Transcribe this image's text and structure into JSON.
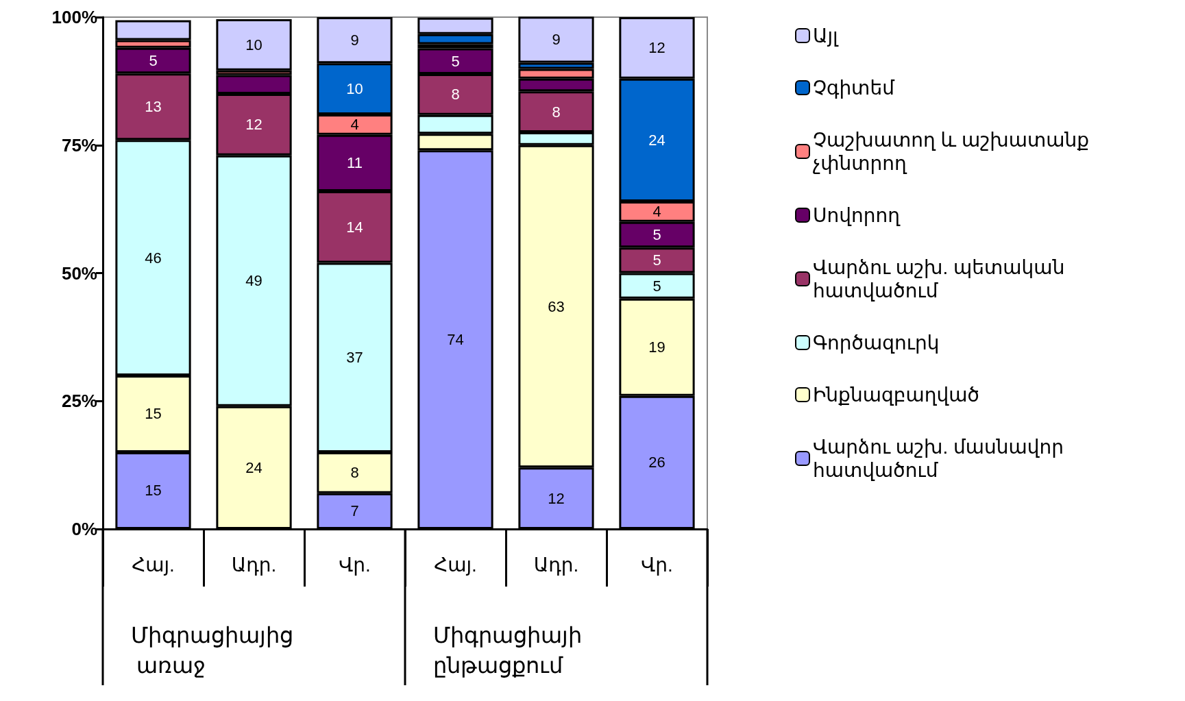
{
  "chart_data": {
    "type": "bar",
    "stacked": true,
    "categories": [
      "Հայ.",
      "Ադր.",
      "Վր.",
      "Հայ.",
      "Ադր.",
      "Վր."
    ],
    "annotations": [
      "Միգրացիայից առաջ",
      "Միգրացիայի ընթացքում"
    ],
    "ylim": [
      0,
      100
    ],
    "yticks": [
      {
        "value": 0,
        "label": "0%"
      },
      {
        "value": 25,
        "label": "25%"
      },
      {
        "value": 50,
        "label": "50%"
      },
      {
        "value": 75,
        "label": "75%"
      },
      {
        "value": 100,
        "label": "100%"
      }
    ],
    "legend": "right",
    "grid": false,
    "series": [
      {
        "name": "Վարձու աշխ. մասնավոր հատվածում",
        "color": "#9999ff",
        "values": [
          15,
          null,
          7,
          74,
          12,
          26
        ],
        "value_labels": [
          "15",
          null,
          "7",
          "74",
          "12",
          "26"
        ]
      },
      {
        "name": "Ինքնազբաղված",
        "color": "#ffffcc",
        "values": [
          15,
          24,
          8,
          3.2,
          63,
          19
        ],
        "value_labels": [
          "15",
          "24",
          "8",
          null,
          "63",
          "19"
        ]
      },
      {
        "name": "Գործազուրկ",
        "color": "#ccffff",
        "values": [
          46,
          49,
          37,
          3.7,
          2.5,
          5
        ],
        "value_labels": [
          "46",
          "49",
          "37",
          null,
          null,
          "5"
        ]
      },
      {
        "name": "Վարձու աշխ. պետական հատվածում",
        "color": "#993366",
        "values": [
          13,
          12,
          14,
          8,
          8,
          5
        ],
        "value_labels": [
          "13",
          "12",
          "14",
          "8",
          "8",
          "5"
        ]
      },
      {
        "name": "Սովորող",
        "color": "#660066",
        "values": [
          5,
          3.7,
          11,
          5,
          2.5,
          5
        ],
        "value_labels": [
          "5",
          null,
          "11",
          "5",
          null,
          "5"
        ]
      },
      {
        "name": "Չաշխատող և աշխատանք չփնտրող",
        "color": "#ff8080",
        "values": [
          1.5,
          0.9,
          4,
          0.8,
          1.9,
          4
        ],
        "value_labels": [
          null,
          null,
          "4",
          null,
          null,
          "4"
        ]
      },
      {
        "name": "Չգիտեմ",
        "color": "#0066cc",
        "values": [
          null,
          null,
          10,
          2,
          1.2,
          24
        ],
        "value_labels": [
          null,
          null,
          "10",
          null,
          null,
          "24"
        ]
      },
      {
        "name": "Այլ",
        "color": "#ccccff",
        "values": [
          3.9,
          10,
          9,
          3.2,
          9,
          12
        ],
        "value_labels": [
          null,
          "10",
          "9",
          null,
          "9",
          "12"
        ]
      }
    ]
  }
}
